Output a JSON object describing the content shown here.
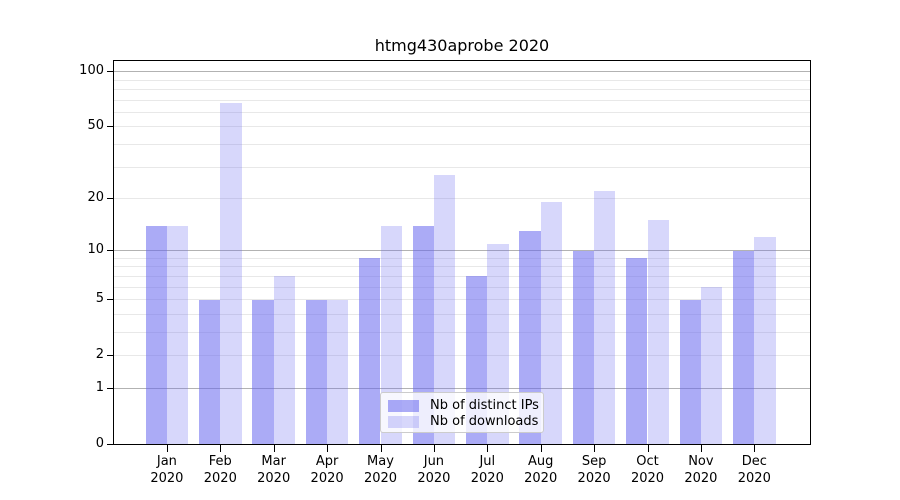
{
  "title": "htmg430aprobe 2020",
  "legend": {
    "items": [
      {
        "label": "Nb of distinct IPs",
        "color": "rgba(102,102,238,0.55)"
      },
      {
        "label": "Nb of downloads",
        "color": "rgba(102,102,238,0.26)"
      }
    ],
    "position": "lower center"
  },
  "chart_data": {
    "type": "bar",
    "title": "htmg430aprobe 2020",
    "categories": [
      "Jan 2020",
      "Feb 2020",
      "Mar 2020",
      "Apr 2020",
      "May 2020",
      "Jun 2020",
      "Jul 2020",
      "Aug 2020",
      "Sep 2020",
      "Oct 2020",
      "Nov 2020",
      "Dec 2020"
    ],
    "series": [
      {
        "name": "Nb of distinct IPs",
        "color": "rgba(102,102,238,0.55)",
        "values": [
          14,
          5,
          5,
          5,
          9,
          14,
          7,
          13,
          10,
          9,
          5,
          10
        ]
      },
      {
        "name": "Nb of downloads",
        "color": "rgba(102,102,238,0.26)",
        "values": [
          14,
          68,
          7,
          5,
          14,
          27,
          11,
          19,
          22,
          15,
          6,
          12
        ]
      }
    ],
    "xlabel": "",
    "ylabel": "",
    "yscale": "log1p",
    "ylim": [
      0,
      114
    ],
    "yticks": [
      0,
      1,
      2,
      5,
      10,
      20,
      50,
      100
    ],
    "ytick_labels": [
      "0",
      "1",
      "2",
      "5",
      "10",
      "20",
      "50",
      "100"
    ],
    "major_grid_values": [
      1,
      10,
      100
    ],
    "minor_grid_values": [
      2,
      3,
      4,
      5,
      6,
      7,
      8,
      9,
      20,
      30,
      40,
      50,
      60,
      70,
      80,
      90
    ],
    "grid": "on",
    "legend_position": "lower center",
    "colors": {
      "major_grid": "#b2b2b2",
      "minor_grid": "#e8e8e8",
      "spine": "#000000",
      "text": "#000000",
      "background": "#ffffff"
    }
  }
}
